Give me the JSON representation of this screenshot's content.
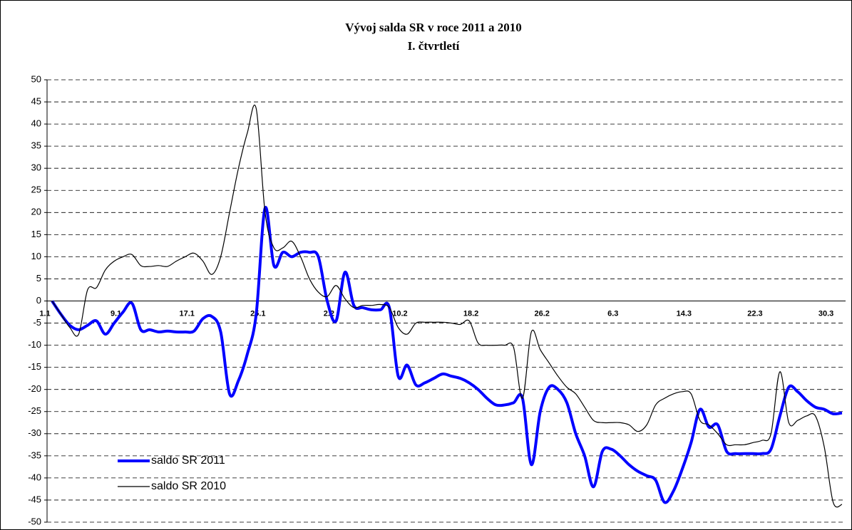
{
  "chart_data": {
    "type": "line",
    "title": "Vývoj salda SR v roce 2011 a 2010",
    "subtitle": "I. čtvrtletí",
    "categories": [
      "1.1",
      null,
      null,
      null,
      null,
      null,
      null,
      null,
      "9.1",
      null,
      null,
      null,
      null,
      null,
      null,
      null,
      "17.1",
      null,
      null,
      null,
      null,
      null,
      null,
      null,
      "25.1",
      null,
      null,
      null,
      null,
      null,
      null,
      null,
      "2.2",
      null,
      null,
      null,
      null,
      null,
      null,
      null,
      "10.2",
      null,
      null,
      null,
      null,
      null,
      null,
      null,
      "18.2",
      null,
      null,
      null,
      null,
      null,
      null,
      null,
      "26.2",
      null,
      null,
      null,
      null,
      null,
      null,
      null,
      "6.3",
      null,
      null,
      null,
      null,
      null,
      null,
      null,
      "14.3",
      null,
      null,
      null,
      null,
      null,
      null,
      null,
      "22.3",
      null,
      null,
      null,
      null,
      null,
      null,
      null,
      "30.3",
      null
    ],
    "series": [
      {
        "name": "saldo SR 2011",
        "color": "#0000ff",
        "values": [
          0,
          -3,
          -5.5,
          -6.5,
          -5.5,
          -4.5,
          -7.5,
          -5,
          -2.5,
          -0.5,
          -6.5,
          -6.5,
          -7,
          -6.8,
          -7,
          -7,
          -6.8,
          -4,
          -3.5,
          -7,
          -21,
          -18,
          -12,
          -3,
          21,
          8,
          11,
          10,
          11,
          11,
          10,
          0,
          -4.5,
          6.5,
          -1,
          -1.5,
          -2,
          -2,
          -1.5,
          -17,
          -14.5,
          -19,
          -18.5,
          -17.5,
          -16.5,
          -17,
          -17.5,
          -18.5,
          -20,
          -22,
          -23.5,
          -23.5,
          -23,
          -22,
          -37,
          -25,
          -19.5,
          -20,
          -23,
          -30,
          -35,
          -42,
          -34,
          -33.5,
          -35,
          -37,
          -38.5,
          -39.5,
          -40.5,
          -45.5,
          -43,
          -38,
          -32,
          -24.5,
          -28.5,
          -28,
          -34,
          -34.5,
          -34.5,
          -34.5,
          -34.5,
          -33.5,
          -26,
          -19.5,
          -20.5,
          -22.5,
          -24,
          -24.5,
          -25.5,
          -25.3
        ]
      },
      {
        "name": "saldo SR 2010",
        "color": "#000000",
        "values": [
          0,
          -3,
          -6,
          -7.5,
          2.5,
          3,
          7,
          9,
          10,
          10.5,
          8,
          7.8,
          8,
          7.8,
          9,
          10,
          10.8,
          9,
          6,
          10,
          20,
          30,
          38,
          43.5,
          20,
          12,
          12,
          13.5,
          10,
          5,
          2,
          1,
          3.5,
          0.5,
          -1.5,
          -1,
          -1,
          -0.8,
          -1.5,
          -6,
          -7.5,
          -5,
          -4.8,
          -4.8,
          -4.8,
          -5,
          -5.3,
          -4.5,
          -9.5,
          -10,
          -10,
          -10,
          -10.5,
          -22,
          -7,
          -11,
          -14,
          -17,
          -19.5,
          -21,
          -24,
          -27,
          -27.5,
          -27.5,
          -27.5,
          -28,
          -29.5,
          -28,
          -23.5,
          -22,
          -21,
          -20.5,
          -21,
          -27,
          -28,
          -30,
          -32.5,
          -32.5,
          -32.5,
          -32,
          -31.5,
          -30,
          -16,
          -27.5,
          -27,
          -26,
          -26,
          -33,
          -45.5,
          -46
        ]
      }
    ],
    "ylim": [
      -50,
      50
    ],
    "yticks": [
      -50,
      -45,
      -40,
      -35,
      -30,
      -25,
      -20,
      -15,
      -10,
      -5,
      0,
      5,
      10,
      15,
      20,
      25,
      30,
      35,
      40,
      45,
      50
    ],
    "grid": true
  }
}
